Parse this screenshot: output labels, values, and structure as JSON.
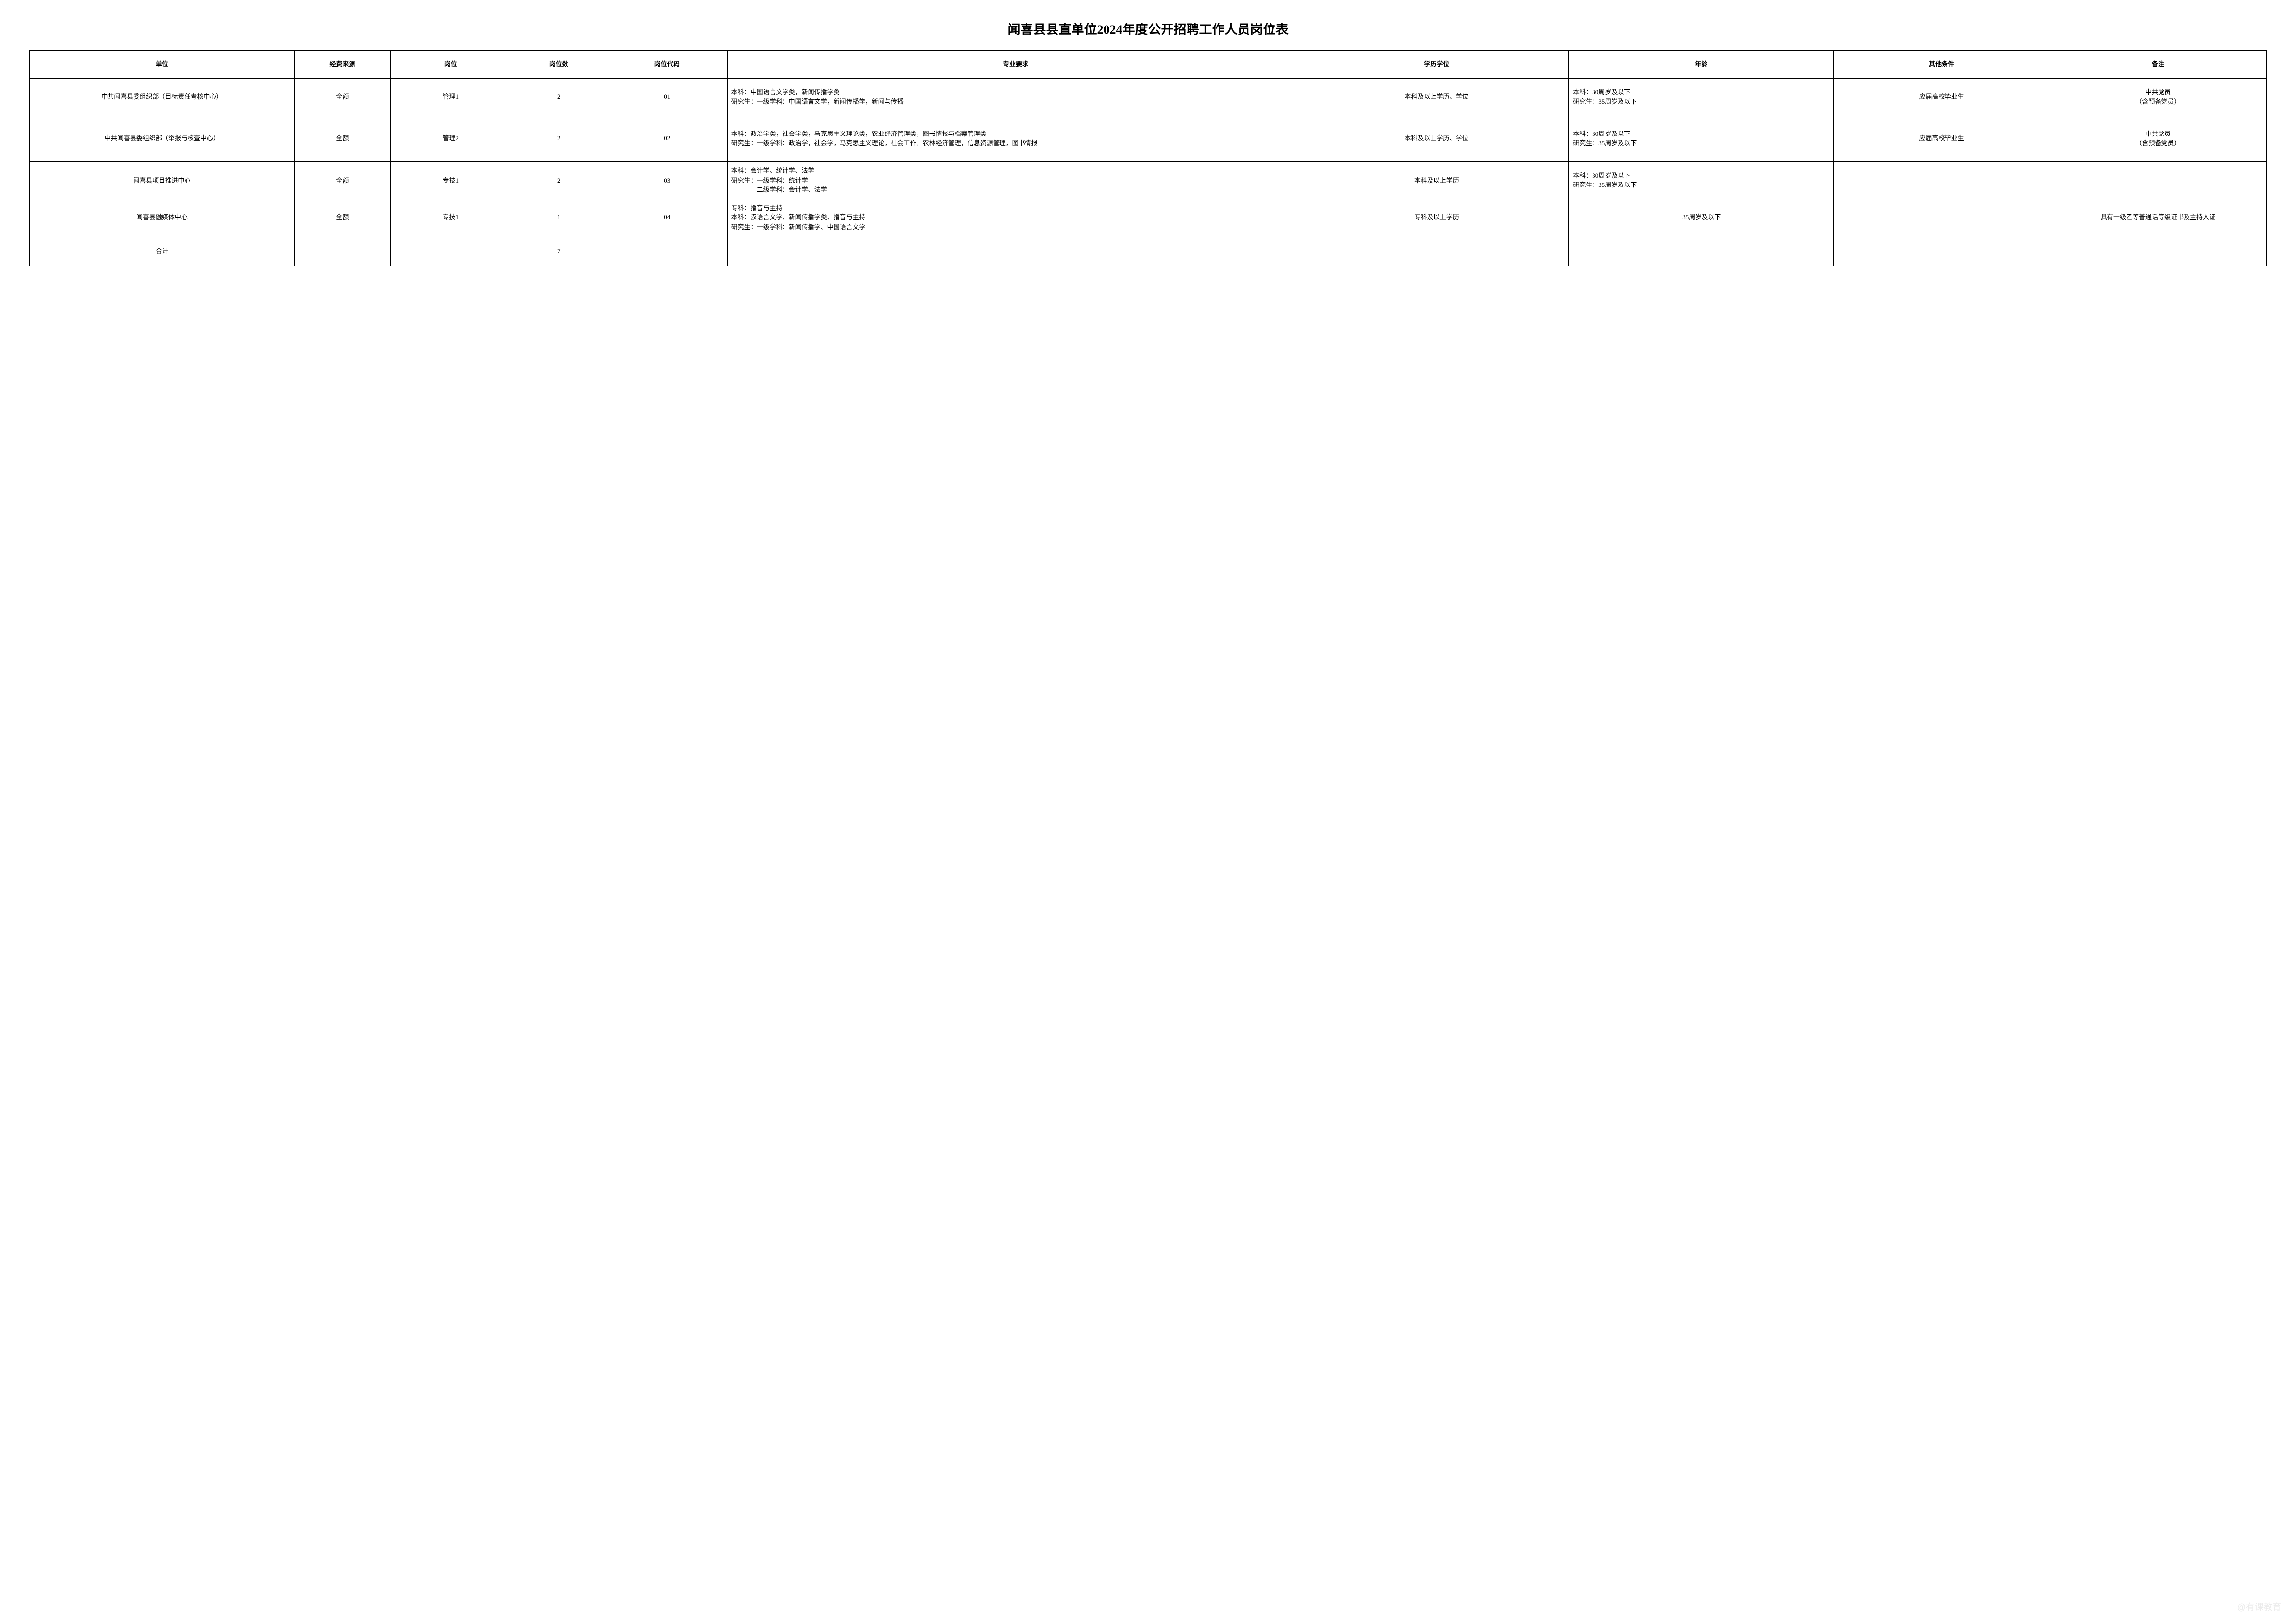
{
  "title": "闻喜县县直单位2024年度公开招聘工作人员岗位表",
  "headers": {
    "unit": "单位",
    "fund": "经费来源",
    "position": "岗位",
    "count": "岗位数",
    "code": "岗位代码",
    "requirement": "专业要求",
    "education": "学历学位",
    "age": "年龄",
    "other": "其他条件",
    "note": "备注"
  },
  "rows": [
    {
      "unit": "中共闻喜县委组织部（目标责任考核中心）",
      "fund": "全额",
      "position": "管理1",
      "count": "2",
      "code": "01",
      "requirement": "本科：中国语言文学类，新闻传播学类\n研究生：一级学科：中国语言文学，新闻传播学，新闻与传播",
      "education": "本科及以上学历、学位",
      "age": "本科：30周岁及以下\n研究生：35周岁及以下",
      "other": "应届高校毕业生",
      "note": "中共党员\n（含预备党员）"
    },
    {
      "unit": "中共闻喜县委组织部（举报与核查中心）",
      "fund": "全额",
      "position": "管理2",
      "count": "2",
      "code": "02",
      "requirement": "本科：政治学类，社会学类，马克思主义理论类，农业经济管理类，图书情报与档案管理类\n研究生：一级学科：政治学，社会学，马克思主义理论，社会工作，农林经济管理，信息资源管理，图书情报",
      "education": "本科及以上学历、学位",
      "age": "本科：30周岁及以下\n研究生：35周岁及以下",
      "other": "应届高校毕业生",
      "note": "中共党员\n（含预备党员）"
    },
    {
      "unit": "闻喜县项目推进中心",
      "fund": "全额",
      "position": "专技1",
      "count": "2",
      "code": "03",
      "requirement": "本科：会计学、统计学、法学\n研究生：一级学科：统计学\n　　　　二级学科：会计学、法学",
      "education": "本科及以上学历",
      "age": "本科：30周岁及以下\n研究生：35周岁及以下",
      "other": "",
      "note": ""
    },
    {
      "unit": "闻喜县融媒体中心",
      "fund": "全额",
      "position": "专技1",
      "count": "1",
      "code": "04",
      "requirement": "专科：播音与主持\n本科：汉语言文学、新闻传播学类、播音与主持\n研究生：一级学科：新闻传播学、中国语言文学",
      "education": "专科及以上学历",
      "age": "35周岁及以下",
      "other": "",
      "note": "具有一级乙等普通话等级证书及主持人证"
    }
  ],
  "total": {
    "label": "合计",
    "count": "7"
  },
  "watermark": "@有课教育"
}
